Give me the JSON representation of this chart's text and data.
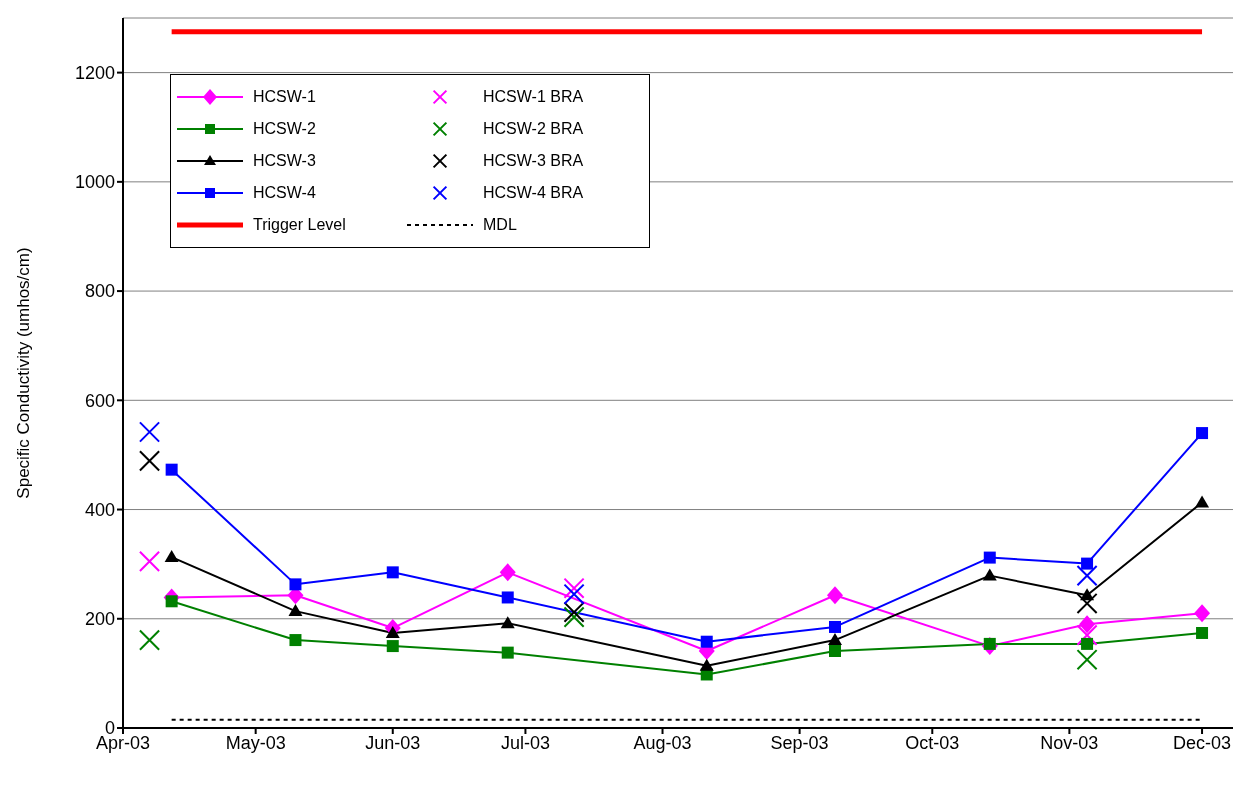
{
  "chart_data": {
    "type": "line",
    "ylabel": "Specific Conductivity (umhos/cm)",
    "ylim": [
      0,
      1300
    ],
    "yticks": [
      0,
      200,
      400,
      600,
      800,
      1000,
      1200
    ],
    "xlim": [
      "2003-04-01",
      "2003-12-08"
    ],
    "xticks": [
      {
        "value": "2003-04-01",
        "label": "Apr-03"
      },
      {
        "value": "2003-05-01",
        "label": "May-03"
      },
      {
        "value": "2003-06-01",
        "label": "Jun-03"
      },
      {
        "value": "2003-07-01",
        "label": "Jul-03"
      },
      {
        "value": "2003-08-01",
        "label": "Aug-03"
      },
      {
        "value": "2003-09-01",
        "label": "Sep-03"
      },
      {
        "value": "2003-10-01",
        "label": "Oct-03"
      },
      {
        "value": "2003-11-01",
        "label": "Nov-03"
      },
      {
        "value": "2003-12-01",
        "label": "Dec-03"
      }
    ],
    "x": [
      "2003-04-12",
      "2003-05-10",
      "2003-06-01",
      "2003-06-27",
      "2003-08-11",
      "2003-09-09",
      "2003-10-14",
      "2003-11-05",
      "2003-12-01"
    ],
    "grid": "y",
    "legend": "top left",
    "line_style": "solid",
    "series": [
      {
        "name": "HCSW-1",
        "color": "#ff00ff",
        "marker": "diamond",
        "values": [
          239,
          243,
          183,
          285,
          141,
          243,
          150,
          190,
          210
        ]
      },
      {
        "name": "HCSW-1 BRA",
        "type": "scatter",
        "color": "#ff00ff",
        "marker": "cross",
        "x": [
          "2003-04-07",
          "2003-07-12",
          "2003-11-05"
        ],
        "values": [
          305,
          256,
          170
        ]
      },
      {
        "name": "HCSW-2",
        "color": "#008000",
        "marker": "square",
        "values": [
          232,
          161,
          150,
          138,
          98,
          141,
          154,
          154,
          174
        ]
      },
      {
        "name": "HCSW-2 BRA",
        "type": "scatter",
        "color": "#008000",
        "marker": "cross",
        "x": [
          "2003-04-07",
          "2003-07-12",
          "2003-11-05"
        ],
        "values": [
          161,
          203,
          125
        ]
      },
      {
        "name": "HCSW-3",
        "color": "#000000",
        "marker": "triangle",
        "values": [
          313,
          214,
          174,
          192,
          114,
          161,
          279,
          243,
          413
        ]
      },
      {
        "name": "HCSW-3 BRA",
        "type": "scatter",
        "color": "#000000",
        "marker": "cross",
        "x": [
          "2003-04-07",
          "2003-07-12",
          "2003-11-05"
        ],
        "values": [
          489,
          212,
          228
        ]
      },
      {
        "name": "HCSW-4",
        "color": "#0000ff",
        "marker": "square",
        "values": [
          473,
          263,
          285,
          239,
          158,
          185,
          312,
          301,
          540
        ]
      },
      {
        "name": "HCSW-4 BRA",
        "type": "scatter",
        "color": "#0000ff",
        "marker": "cross",
        "x": [
          "2003-04-07",
          "2003-07-12",
          "2003-11-05"
        ],
        "values": [
          542,
          245,
          279
        ]
      },
      {
        "name": "Trigger Level",
        "color": "#ff0000",
        "marker": "none",
        "x": [
          "2003-04-12",
          "2003-12-01"
        ],
        "values": [
          1275,
          1275
        ]
      },
      {
        "name": "MDL",
        "color": "#000000",
        "marker": "none",
        "line_style": "dotted",
        "x": [
          "2003-04-12",
          "2003-12-01"
        ],
        "values": [
          15,
          15
        ]
      }
    ]
  }
}
